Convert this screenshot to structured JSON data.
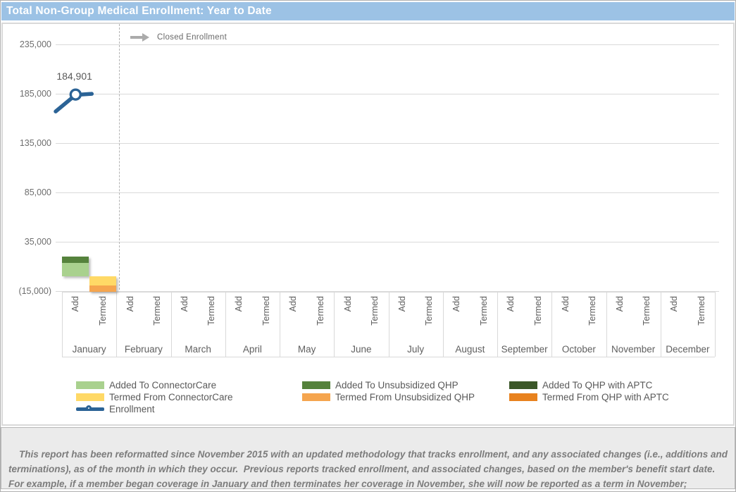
{
  "page": {
    "title": "Total Non-Group Medical Enrollment: Year to Date"
  },
  "annotation": {
    "label": "Closed Enrollment",
    "icon": "right-arrow-icon"
  },
  "chart_data": {
    "type": "bar",
    "title": "Total Non-Group Medical Enrollment: Year to Date",
    "orientation": "vertical",
    "categories": [
      "January",
      "February",
      "March",
      "April",
      "May",
      "June",
      "July",
      "August",
      "September",
      "October",
      "November",
      "December"
    ],
    "slot_labels": [
      "Add",
      "Termed"
    ],
    "y_axis": {
      "tick_values": [
        235000,
        185000,
        135000,
        85000,
        35000,
        -15000
      ],
      "tick_labels": [
        "235,000",
        "185,000",
        "135,000",
        "85,000",
        "35,000",
        "(15,000)"
      ],
      "min": -15000,
      "max": 245000,
      "grid": true
    },
    "series": [
      {
        "name": "Added To ConnectorCare",
        "slot": "Add",
        "color": "#a9d18e",
        "values": [
          13500,
          0,
          0,
          0,
          0,
          0,
          0,
          0,
          0,
          0,
          0,
          0
        ]
      },
      {
        "name": "Added To Unsubsidized QHP",
        "slot": "Add",
        "color": "#55823c",
        "values": [
          6500,
          0,
          0,
          0,
          0,
          0,
          0,
          0,
          0,
          0,
          0,
          0
        ]
      },
      {
        "name": "Added To QHP with APTC",
        "slot": "Add",
        "color": "#3b5728",
        "values": [
          0,
          0,
          0,
          0,
          0,
          0,
          0,
          0,
          0,
          0,
          0,
          0
        ]
      },
      {
        "name": "Termed From ConnectorCare",
        "slot": "Termed",
        "color": "#ffd966",
        "values": [
          -9500,
          0,
          0,
          0,
          0,
          0,
          0,
          0,
          0,
          0,
          0,
          0
        ]
      },
      {
        "name": "Termed From Unsubsidized QHP",
        "slot": "Termed",
        "color": "#f5a54e",
        "values": [
          -6200,
          0,
          0,
          0,
          0,
          0,
          0,
          0,
          0,
          0,
          0,
          0
        ]
      },
      {
        "name": "Termed From QHP with APTC",
        "slot": "Termed",
        "color": "#e8821e",
        "values": [
          0,
          0,
          0,
          0,
          0,
          0,
          0,
          0,
          0,
          0,
          0,
          0
        ]
      }
    ],
    "line_series": {
      "name": "Enrollment",
      "color": "#2b6396",
      "points": [
        {
          "category": "January",
          "value": 184901,
          "label": "184,901"
        }
      ]
    },
    "annotation": "Closed Enrollment",
    "legend_position": "bottom"
  },
  "legend": {
    "columns": [
      [
        {
          "label": "Added To ConnectorCare",
          "color": "#a9d18e",
          "type": "swatch"
        },
        {
          "label": "Termed From ConnectorCare",
          "color": "#ffd966",
          "type": "swatch"
        },
        {
          "label": "Enrollment",
          "color": "#2b6396",
          "type": "line-marker"
        }
      ],
      [
        {
          "label": "Added To Unsubsidized QHP",
          "color": "#55823c",
          "type": "swatch"
        },
        {
          "label": "Termed From Unsubsidized QHP",
          "color": "#f5a54e",
          "type": "swatch"
        }
      ],
      [
        {
          "label": "Added To QHP with APTC",
          "color": "#3b5728",
          "type": "swatch"
        },
        {
          "label": "Termed From QHP with APTC",
          "color": "#e8821e",
          "type": "swatch"
        }
      ]
    ]
  },
  "footnote": "This report has been reformatted since November 2015 with an updated methodology that tracks enrollment, and any associated changes (i.e., additions and terminations), as of the month in which they occur.  Previous reports tracked enrollment, and associated changes, based on the member's benefit start date.  For example, if a member began coverage in January and then terminates her coverage in November, she will now be reported as a term in November; previously she would have been reported as a term in January."
}
